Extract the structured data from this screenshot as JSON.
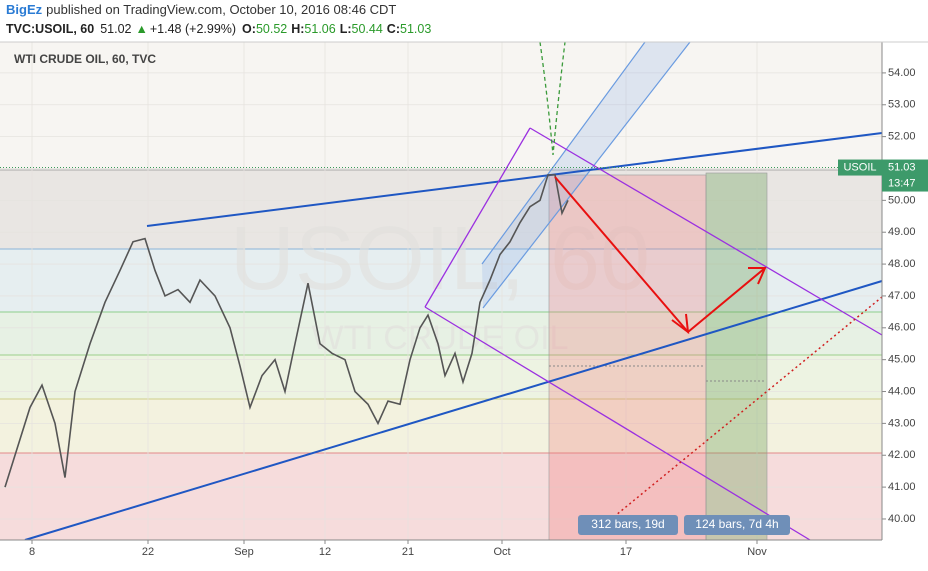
{
  "header": {
    "author": "BigEz",
    "published": "published on TradingView.com, October 10, 2016 08:46 CDT",
    "symbol": "TVC:USOIL, 60",
    "last": "51.02",
    "change": "+1.48 (+2.99%)",
    "open_label": "O:",
    "open": "50.52",
    "high_label": "H:",
    "high": "51.06",
    "low_label": "L:",
    "low": "50.44",
    "close_label": "C:",
    "close": "51.03"
  },
  "chart_data": {
    "type": "line",
    "title": "WTI CRUDE OIL, 60, TVC",
    "watermark": "USOIL, 60",
    "watermark_sub": "WTI CRUDE OIL",
    "x": [
      10,
      30,
      60,
      84,
      110,
      130,
      150,
      180,
      210,
      240,
      266,
      290,
      310,
      330,
      356,
      380,
      400,
      430,
      460,
      480,
      500,
      524,
      550,
      570,
      590,
      616,
      640,
      664,
      690,
      710,
      736,
      756,
      776,
      800,
      820,
      840,
      856,
      876,
      890,
      910,
      926,
      944,
      960,
      980,
      1000,
      1020,
      1040,
      1060,
      1080,
      1096,
      1110,
      1124,
      1136
    ],
    "series": [
      {
        "name": "USOIL",
        "color": "#555555",
        "values": [
          41.0,
          42.0,
          43.5,
          44.2,
          43.0,
          41.3,
          44.0,
          45.5,
          46.8,
          47.8,
          48.7,
          48.8,
          47.8,
          47.0,
          47.2,
          46.8,
          47.5,
          47.0,
          46.0,
          44.8,
          43.5,
          44.5,
          45.0,
          44.0,
          45.5,
          47.4,
          45.5,
          45.2,
          45.0,
          44.0,
          43.6,
          43.0,
          43.7,
          43.6,
          45.0,
          46.0,
          46.4,
          45.5,
          44.5,
          45.2,
          44.3,
          45.2,
          46.8,
          47.5,
          48.3,
          48.7,
          49.3,
          49.8,
          50.0,
          50.8,
          50.8,
          49.6,
          50.0
        ]
      }
    ],
    "xlim": [
      0,
      1764
    ],
    "ylim": [
      39.34,
      54.97
    ],
    "xticks": [
      {
        "value": 64,
        "label": "8"
      },
      {
        "value": 296,
        "label": "22"
      },
      {
        "value": 488,
        "label": "Sep"
      },
      {
        "value": 650,
        "label": "12"
      },
      {
        "value": 816,
        "label": "21"
      },
      {
        "value": 1004,
        "label": "Oct"
      },
      {
        "value": 1252,
        "label": "17"
      },
      {
        "value": 1514,
        "label": "Nov"
      }
    ],
    "yticks": [
      {
        "value": 40,
        "label": "40.00"
      },
      {
        "value": 41,
        "label": "41.00"
      },
      {
        "value": 42,
        "label": "42.00"
      },
      {
        "value": 43,
        "label": "43.00"
      },
      {
        "value": 44,
        "label": "44.00"
      },
      {
        "value": 45,
        "label": "45.00"
      },
      {
        "value": 46,
        "label": "46.00"
      },
      {
        "value": 47,
        "label": "47.00"
      },
      {
        "value": 48,
        "label": "48.00"
      },
      {
        "value": 49,
        "label": "49.00"
      },
      {
        "value": 50,
        "label": "50.00"
      },
      {
        "value": 51,
        "label": "51.00"
      },
      {
        "value": 52,
        "label": "52.00"
      },
      {
        "value": 53,
        "label": "53.00"
      },
      {
        "value": 54,
        "label": "54.00"
      }
    ],
    "last_label": "USOIL",
    "last_value": 51.03,
    "countdown": "13:47",
    "measurements": [
      "312 bars, 19d",
      "124 bars, 7d 4h"
    ]
  }
}
